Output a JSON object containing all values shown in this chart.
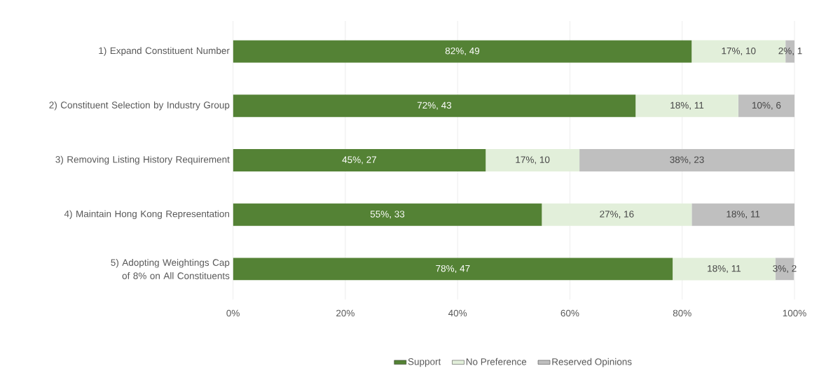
{
  "chart_data": {
    "type": "bar",
    "orientation": "horizontal",
    "stacked": true,
    "categories": [
      "1) Expand Constituent Number",
      "2) Constituent Selection by Industry Group",
      "3) Removing Listing History Requirement",
      "4) Maintain Hong Kong Representation",
      "5) Adopting Weightings Cap of 8% on All Constituents"
    ],
    "series": [
      {
        "name": "Support",
        "color": "#548235",
        "values": [
          81.7,
          71.7,
          45,
          55,
          78.3
        ],
        "value_labels": [
          "82%, 49",
          "72%, 43",
          "45%, 27",
          "55%, 33",
          "78%, 47"
        ]
      },
      {
        "name": "No Preference",
        "color": "#e2efda",
        "values": [
          16.7,
          18.3,
          16.7,
          26.7,
          18.3
        ],
        "value_labels": [
          "17%, 10",
          "18%, 11",
          "17%, 10",
          "27%, 16",
          "18%, 11"
        ]
      },
      {
        "name": "Reserved Opinions",
        "color": "#bfbfbf",
        "values": [
          1.7,
          10,
          38.3,
          18.3,
          3.3
        ],
        "value_labels": [
          "2%, 1",
          "10%, 6",
          "38%, 23",
          "18%, 11",
          "3%, 2"
        ]
      }
    ],
    "xlim": [
      0,
      100
    ],
    "xticks": [
      {
        "value": 0,
        "label": "0%"
      },
      {
        "value": 20,
        "label": "20%"
      },
      {
        "value": 40,
        "label": "40%"
      },
      {
        "value": 60,
        "label": "60%"
      },
      {
        "value": 80,
        "label": "80%"
      },
      {
        "value": 100,
        "label": "100%"
      }
    ],
    "grid": "x",
    "legend": "bottom"
  }
}
